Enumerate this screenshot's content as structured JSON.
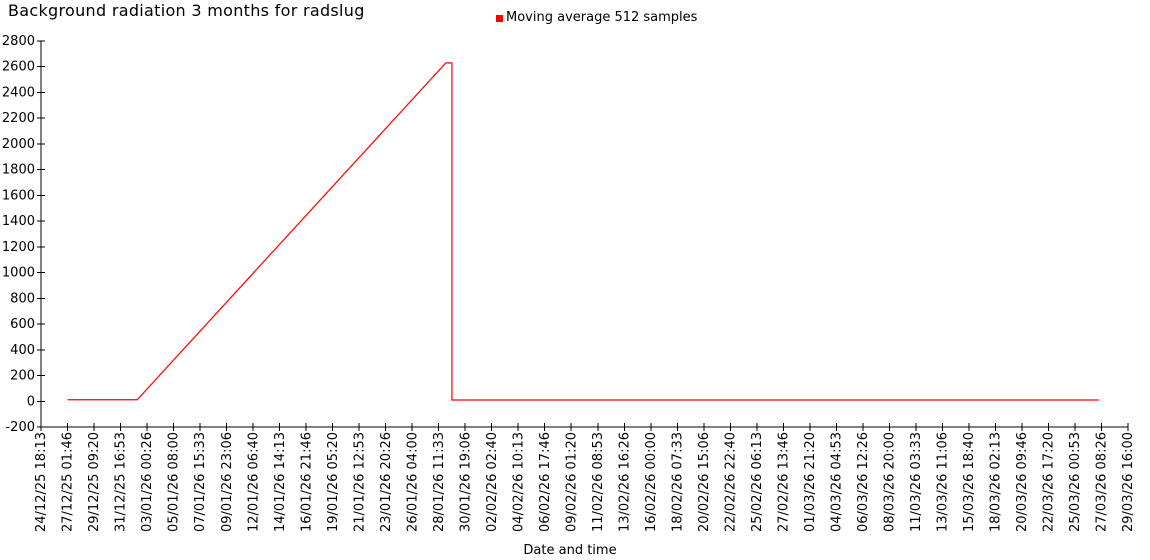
{
  "title": "Background radiation 3 months for radslug",
  "legend": {
    "label": "Moving average 512 samples",
    "marker_color": "#ff0000"
  },
  "xlabel": "Date and time",
  "colors": {
    "line": "#ff0000",
    "axis": "#000000",
    "text": "#000000",
    "background": "#ffffff"
  },
  "chart_data": {
    "type": "line",
    "title": "Background radiation 3 months for radslug",
    "xlabel": "Date and time",
    "ylabel": "",
    "ylim": [
      -200,
      2800
    ],
    "ytick_step": 200,
    "grid": false,
    "legend_position": "top-center",
    "legend_entries": [
      "Moving average 512 samples"
    ],
    "categories": [
      "24/12/25 18:13",
      "27/12/25 01:46",
      "29/12/25 09:20",
      "31/12/25 16:53",
      "03/01/26 00:26",
      "05/01/26 08:00",
      "07/01/26 15:33",
      "09/01/26 23:06",
      "12/01/26 06:40",
      "14/01/26 14:13",
      "16/01/26 21:46",
      "19/01/26 05:20",
      "21/01/26 12:53",
      "23/01/26 20:26",
      "26/01/26 04:00",
      "28/01/26 11:33",
      "30/01/26 19:06",
      "02/02/26 02:40",
      "04/02/26 10:13",
      "06/02/26 17:46",
      "09/02/26 01:20",
      "11/02/26 08:53",
      "13/02/26 16:26",
      "16/02/26 00:00",
      "18/02/26 07:33",
      "20/02/26 15:06",
      "22/02/26 22:40",
      "25/02/26 06:13",
      "27/02/26 13:46",
      "01/03/26 21:20",
      "04/03/26 04:53",
      "06/03/26 12:26",
      "08/03/26 20:00",
      "11/03/26 03:33",
      "13/03/26 11:06",
      "15/03/26 18:40",
      "18/03/26 02:13",
      "20/03/26 09:46",
      "22/03/26 17:20",
      "25/03/26 00:53",
      "27/03/26 08:26",
      "29/03/26 16:00"
    ],
    "series": [
      {
        "name": "Moving average 512 samples",
        "color": "#ff0000",
        "points": [
          {
            "x_index": 1.0,
            "approx_time": "27/12/25 01:46",
            "value": 12
          },
          {
            "x_index": 3.63,
            "approx_time": "02/01/26 05:00",
            "value": 12
          },
          {
            "x_index": 15.27,
            "approx_time": "29/01/26 01:00",
            "value": 2630
          },
          {
            "x_index": 15.5,
            "approx_time": "29/01/26 15:00",
            "value": 2630
          },
          {
            "x_index": 15.5,
            "approx_time": "29/01/26 15:00",
            "value": 10
          },
          {
            "x_index": 39.9,
            "approx_time": "27/03/26 03:00",
            "value": 10
          }
        ]
      }
    ]
  }
}
